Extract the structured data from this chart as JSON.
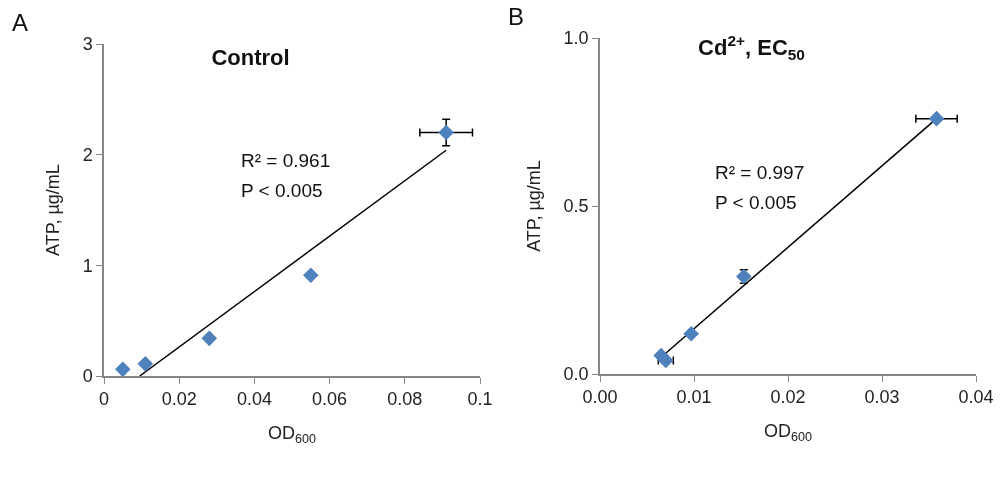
{
  "chart_data": [
    {
      "type": "scatter",
      "title": "Control",
      "xlabel": "OD$_{600}$",
      "ylabel": "ATP, µg/mL",
      "annotations": [
        "A",
        "R² = 0.961",
        "P < 0.005"
      ],
      "xlim": [
        0,
        0.1
      ],
      "xticks": [
        0,
        0.02,
        0.04,
        0.06,
        0.08,
        0.1
      ],
      "ylim": [
        0,
        3
      ],
      "yticks": [
        0,
        1,
        2,
        3
      ],
      "grid": false,
      "marker": "diamond",
      "series": [
        {
          "type": "scatter",
          "color": "#4f81bd",
          "x": [
            0.005,
            0.011,
            0.028,
            0.055,
            0.091
          ],
          "values": [
            0.06,
            0.11,
            0.34,
            0.91,
            2.2
          ],
          "errors": [
            null,
            null,
            null,
            null,
            0.12
          ],
          "xerrors": [
            null,
            null,
            null,
            null,
            0.007
          ]
        },
        {
          "type": "line",
          "color": "#000000",
          "x": [
            0.0095,
            0.091
          ],
          "values": [
            0,
            2.04
          ],
          "marker": "none",
          "line_style": "solid"
        }
      ]
    },
    {
      "type": "scatter",
      "title": "Cd$^{2+}$, EC$_{50}$",
      "xlabel": "OD$_{600}$",
      "ylabel": "ATP, µg/mL",
      "annotations": [
        "B",
        "R² = 0.997",
        "P < 0.005"
      ],
      "xlim": [
        0,
        0.04
      ],
      "xticks": [
        {
          "value": 0,
          "label": "0.00"
        },
        {
          "value": 0.01,
          "label": "0.01"
        },
        {
          "value": 0.02,
          "label": "0.02"
        },
        {
          "value": 0.03,
          "label": "0.03"
        },
        {
          "value": 0.04,
          "label": "0.04"
        }
      ],
      "ylim": [
        0,
        1
      ],
      "yticks": [
        {
          "value": 0,
          "label": "0.0"
        },
        {
          "value": 0.5,
          "label": "0.5"
        },
        {
          "value": 1,
          "label": "1.0"
        }
      ],
      "grid": false,
      "marker": "diamond",
      "series": [
        {
          "type": "scatter",
          "color": "#4f81bd",
          "x": [
            0.0065,
            0.007,
            0.0097,
            0.0153,
            0.0358
          ],
          "values": [
            0.055,
            0.04,
            0.12,
            0.29,
            0.76
          ],
          "errors": [
            null,
            null,
            null,
            0.02,
            null
          ],
          "xerrors": [
            null,
            0.0008,
            null,
            null,
            0.0022
          ]
        },
        {
          "type": "line",
          "color": "#000000",
          "x": [
            0.0065,
            0.0358
          ],
          "values": [
            0.05,
            0.76
          ],
          "marker": "none",
          "line_style": "solid"
        }
      ]
    }
  ]
}
